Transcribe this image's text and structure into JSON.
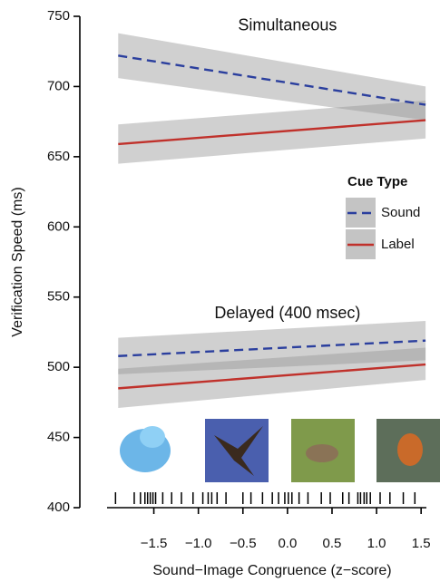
{
  "chart_data": {
    "type": "line",
    "xlabel": "Sound−Image Congruence (z−score)",
    "ylabel": "Verification Speed (ms)",
    "xlim": [
      -2.3,
      1.6
    ],
    "ylim": [
      400,
      750
    ],
    "xticks": [
      {
        "value": -1.5,
        "label": "−1.5"
      },
      {
        "value": -1.0,
        "label": "−1.0"
      },
      {
        "value": -0.5,
        "label": "−0.5"
      },
      {
        "value": 0,
        "label": "0.0"
      },
      0.5,
      {
        "value": 1.0,
        "label": "1.0"
      },
      1.5
    ],
    "yticks": [
      400,
      450,
      500,
      550,
      600,
      650,
      700,
      750
    ],
    "legend_title": "Cue Type",
    "legend": "right",
    "annotations": [
      {
        "text": "Simultaneous",
        "x": 0,
        "y": 743
      },
      {
        "text": "Delayed (400 msec)",
        "x": 0,
        "y": 538
      }
    ],
    "x": [
      -1.9,
      1.55
    ],
    "series": [
      {
        "name": "Sound",
        "color": "#2b3f9e",
        "dash": true,
        "values": [
          722,
          687
        ],
        "lower": [
          706,
          676
        ],
        "upper": [
          738,
          700
        ]
      },
      {
        "name": "Label",
        "color": "#c0312b",
        "dash": false,
        "values": [
          659,
          676
        ],
        "lower": [
          645,
          663
        ],
        "upper": [
          673,
          690
        ]
      },
      {
        "name": "Sound",
        "color": "#2b3f9e",
        "dash": true,
        "values": [
          508,
          519
        ],
        "lower": [
          495,
          505
        ],
        "upper": [
          521,
          533
        ]
      },
      {
        "name": "Label",
        "color": "#c0312b",
        "dash": false,
        "values": [
          485,
          502
        ],
        "lower": [
          471,
          491
        ],
        "upper": [
          499,
          514
        ]
      }
    ],
    "rug": [
      -1.93,
      -1.72,
      -1.65,
      -1.6,
      -1.57,
      -1.54,
      -1.51,
      -1.48,
      -1.4,
      -1.3,
      -1.19,
      -1.06,
      -0.95,
      -0.89,
      -0.85,
      -0.79,
      -0.69,
      -0.5,
      -0.41,
      -0.28,
      -0.17,
      -0.1,
      -0.03,
      0.01,
      0.05,
      0.13,
      0.23,
      0.38,
      0.48,
      0.62,
      0.69,
      0.79,
      0.82,
      0.86,
      0.89,
      0.93,
      1.04,
      1.15,
      1.3,
      1.43
    ]
  }
}
